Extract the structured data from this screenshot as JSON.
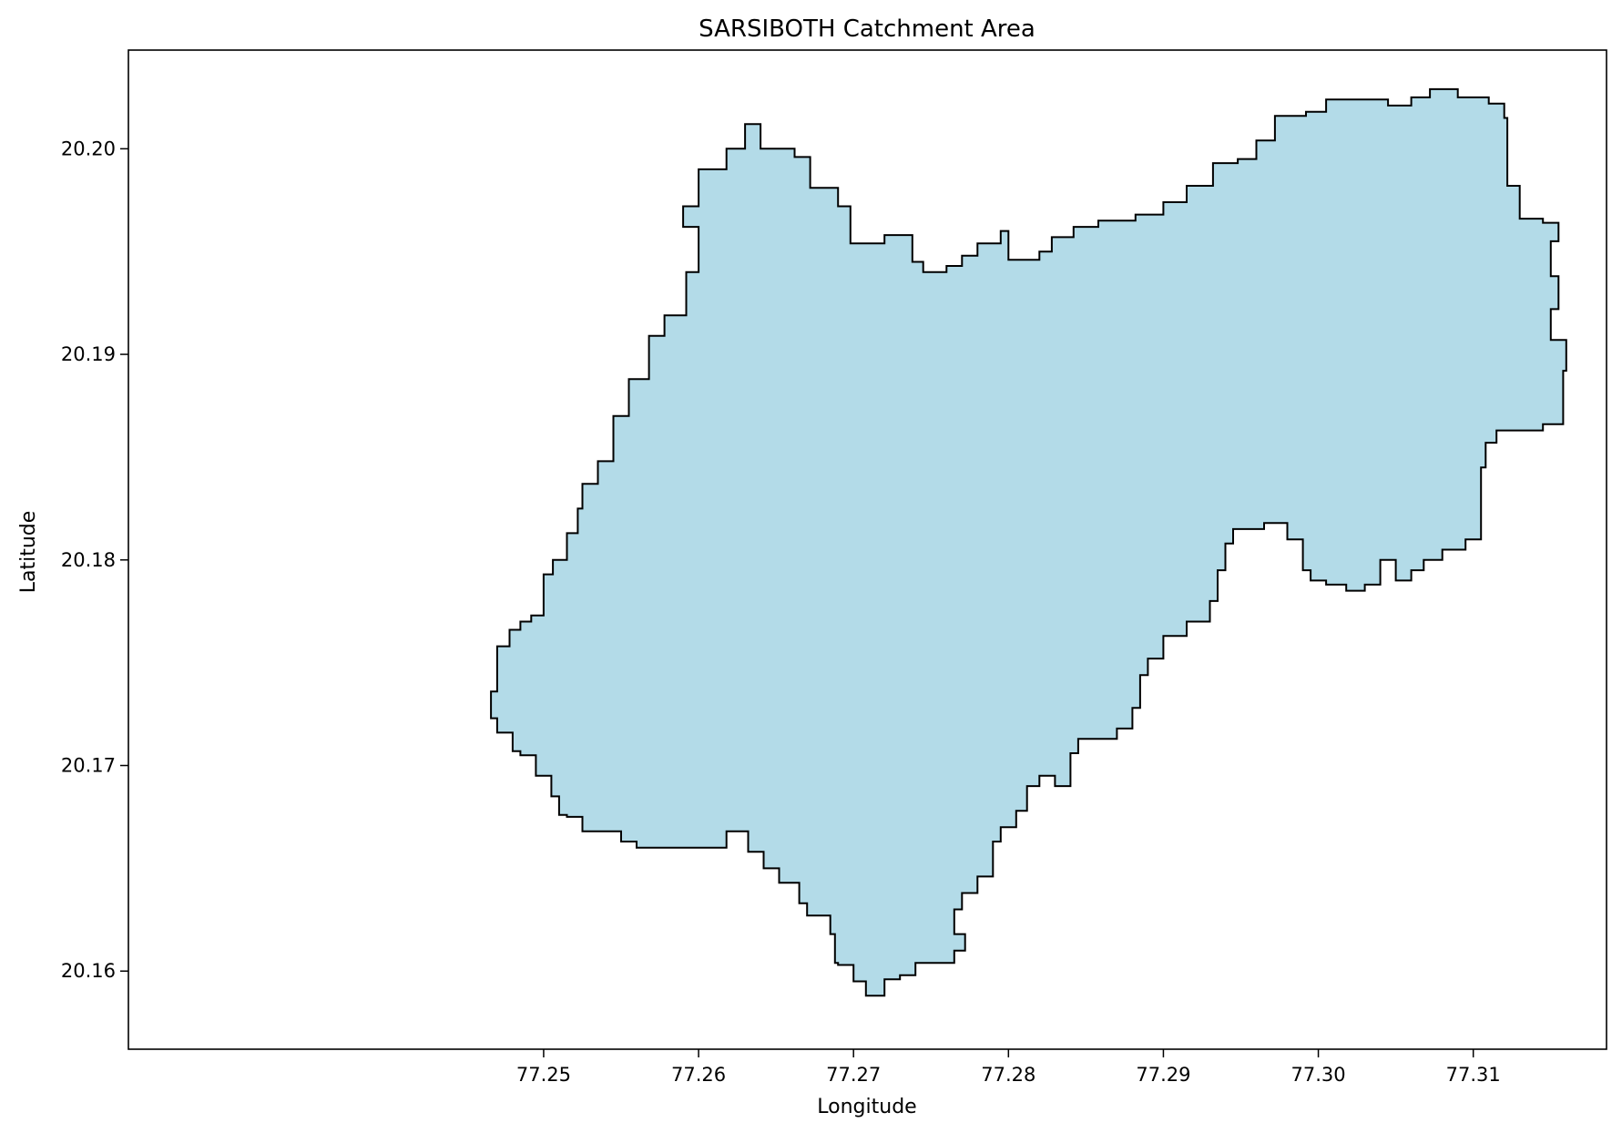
{
  "chart_data": {
    "type": "map",
    "title": "SARSIBOTH Catchment Area",
    "xlabel": "Longitude",
    "ylabel": "Latitude",
    "xlim": [
      77.2232,
      77.3186
    ],
    "ylim": [
      20.1562,
      20.2048
    ],
    "xticks": [
      77.25,
      77.26,
      77.27,
      77.28,
      77.29,
      77.3,
      77.31
    ],
    "xtick_labels": [
      "77.25",
      "77.26",
      "77.27",
      "77.28",
      "77.29",
      "77.30",
      "77.31"
    ],
    "yticks": [
      20.16,
      20.17,
      20.18,
      20.19,
      20.2
    ],
    "ytick_labels": [
      "20.16",
      "20.17",
      "20.18",
      "20.19",
      "20.20"
    ],
    "polygon": {
      "fill_color": "#add8e6",
      "edge_color": "#000000",
      "boundary": [
        [
          77.2466,
          20.1736
        ],
        [
          77.247,
          20.1758
        ],
        [
          77.2478,
          20.1766
        ],
        [
          77.2485,
          20.177
        ],
        [
          77.2492,
          20.1773
        ],
        [
          77.25,
          20.1793
        ],
        [
          77.2506,
          20.18
        ],
        [
          77.2515,
          20.1813
        ],
        [
          77.2522,
          20.1825
        ],
        [
          77.2525,
          20.1837
        ],
        [
          77.2535,
          20.1848
        ],
        [
          77.2545,
          20.187
        ],
        [
          77.2555,
          20.1888
        ],
        [
          77.2568,
          20.1909
        ],
        [
          77.2578,
          20.1919
        ],
        [
          77.2592,
          20.194
        ],
        [
          77.26,
          20.1962
        ],
        [
          77.259,
          20.1972
        ],
        [
          77.26,
          20.199
        ],
        [
          77.2618,
          20.2
        ],
        [
          77.263,
          20.2012
        ],
        [
          77.264,
          20.2
        ],
        [
          77.2662,
          20.1996
        ],
        [
          77.2672,
          20.1981
        ],
        [
          77.269,
          20.1972
        ],
        [
          77.2698,
          20.1954
        ],
        [
          77.272,
          20.1958
        ],
        [
          77.2738,
          20.1945
        ],
        [
          77.2745,
          20.194
        ],
        [
          77.276,
          20.1943
        ],
        [
          77.277,
          20.1948
        ],
        [
          77.278,
          20.1954
        ],
        [
          77.2795,
          20.196
        ],
        [
          77.28,
          20.1946
        ],
        [
          77.282,
          20.195
        ],
        [
          77.2828,
          20.1957
        ],
        [
          77.2842,
          20.1962
        ],
        [
          77.2858,
          20.1965
        ],
        [
          77.2882,
          20.1968
        ],
        [
          77.29,
          20.1974
        ],
        [
          77.2915,
          20.1982
        ],
        [
          77.2932,
          20.1993
        ],
        [
          77.2948,
          20.1995
        ],
        [
          77.296,
          20.2004
        ],
        [
          77.2972,
          20.2016
        ],
        [
          77.2992,
          20.2018
        ],
        [
          77.3005,
          20.2024
        ],
        [
          77.303,
          20.2024
        ],
        [
          77.3045,
          20.2021
        ],
        [
          77.306,
          20.2025
        ],
        [
          77.3072,
          20.2029
        ],
        [
          77.309,
          20.2025
        ],
        [
          77.311,
          20.2022
        ],
        [
          77.312,
          20.2015
        ],
        [
          77.3122,
          20.2
        ],
        [
          77.3122,
          20.1982
        ],
        [
          77.313,
          20.1966
        ],
        [
          77.3145,
          20.1964
        ],
        [
          77.3155,
          20.1955
        ],
        [
          77.315,
          20.1938
        ],
        [
          77.3155,
          20.1922
        ],
        [
          77.315,
          20.1907
        ],
        [
          77.316,
          20.1892
        ],
        [
          77.3158,
          20.188
        ],
        [
          77.3158,
          20.1866
        ],
        [
          77.3145,
          20.1863
        ],
        [
          77.3128,
          20.1863
        ],
        [
          77.3115,
          20.1857
        ],
        [
          77.3108,
          20.1845
        ],
        [
          77.3105,
          20.1825
        ],
        [
          77.3105,
          20.181
        ],
        [
          77.3095,
          20.1805
        ],
        [
          77.308,
          20.18
        ],
        [
          77.3068,
          20.1795
        ],
        [
          77.306,
          20.179
        ],
        [
          77.305,
          20.18
        ],
        [
          77.304,
          20.1788
        ],
        [
          77.303,
          20.1785
        ],
        [
          77.3018,
          20.1788
        ],
        [
          77.3005,
          20.179
        ],
        [
          77.2995,
          20.1795
        ],
        [
          77.299,
          20.181
        ],
        [
          77.298,
          20.1818
        ],
        [
          77.2965,
          20.1815
        ],
        [
          77.2955,
          20.1815
        ],
        [
          77.2945,
          20.1808
        ],
        [
          77.294,
          20.1795
        ],
        [
          77.2935,
          20.178
        ],
        [
          77.293,
          20.177
        ],
        [
          77.2915,
          20.1763
        ],
        [
          77.29,
          20.1752
        ],
        [
          77.289,
          20.1744
        ],
        [
          77.2885,
          20.1728
        ],
        [
          77.288,
          20.1718
        ],
        [
          77.287,
          20.1713
        ],
        [
          77.286,
          20.1713
        ],
        [
          77.2845,
          20.1706
        ],
        [
          77.284,
          20.169
        ],
        [
          77.283,
          20.1695
        ],
        [
          77.282,
          20.169
        ],
        [
          77.2812,
          20.1678
        ],
        [
          77.2805,
          20.167
        ],
        [
          77.2795,
          20.1663
        ],
        [
          77.279,
          20.1646
        ],
        [
          77.278,
          20.1638
        ],
        [
          77.277,
          20.163
        ],
        [
          77.2765,
          20.1618
        ],
        [
          77.2772,
          20.161
        ],
        [
          77.2765,
          20.1604
        ],
        [
          77.2752,
          20.1604
        ],
        [
          77.274,
          20.1598
        ],
        [
          77.273,
          20.1596
        ],
        [
          77.272,
          20.1588
        ],
        [
          77.2712,
          20.1588
        ],
        [
          77.2708,
          20.1595
        ],
        [
          77.27,
          20.1603
        ],
        [
          77.269,
          20.1604
        ],
        [
          77.2688,
          20.1618
        ],
        [
          77.2685,
          20.1627
        ],
        [
          77.2675,
          20.1627
        ],
        [
          77.267,
          20.1633
        ],
        [
          77.2665,
          20.1643
        ],
        [
          77.2652,
          20.165
        ],
        [
          77.2642,
          20.1658
        ],
        [
          77.2632,
          20.1668
        ],
        [
          77.2622,
          20.1668
        ],
        [
          77.2618,
          20.166
        ],
        [
          77.2605,
          20.166
        ],
        [
          77.2595,
          20.166
        ],
        [
          77.2585,
          20.166
        ],
        [
          77.2572,
          20.166
        ],
        [
          77.256,
          20.1663
        ],
        [
          77.255,
          20.1668
        ],
        [
          77.254,
          20.1668
        ],
        [
          77.2525,
          20.1675
        ],
        [
          77.2515,
          20.1676
        ],
        [
          77.251,
          20.1685
        ],
        [
          77.2505,
          20.1695
        ],
        [
          77.2495,
          20.1705
        ],
        [
          77.2485,
          20.1707
        ],
        [
          77.248,
          20.1716
        ],
        [
          77.247,
          20.1723
        ],
        [
          77.2466,
          20.173
        ]
      ]
    }
  }
}
